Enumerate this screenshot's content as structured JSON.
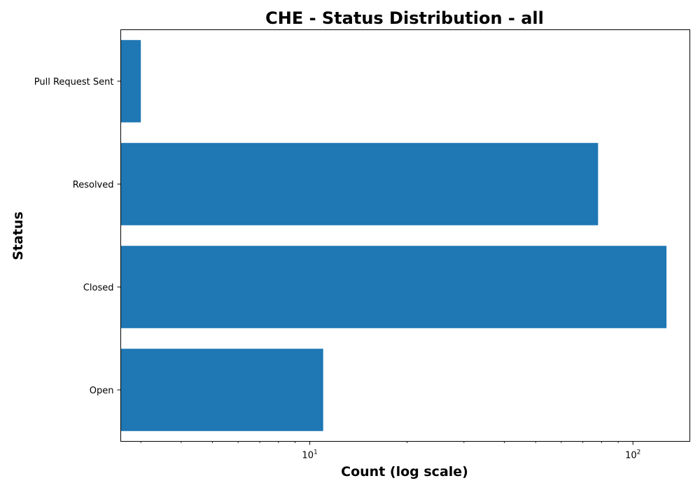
{
  "chart_data": {
    "type": "bar",
    "orientation": "horizontal",
    "title": "CHE - Status Distribution - all",
    "xlabel": "Count (log scale)",
    "ylabel": "Status",
    "x_scale": "log",
    "xlim": [
      2.6,
      150
    ],
    "categories": [
      "Open",
      "Closed",
      "Resolved",
      "Pull Request Sent"
    ],
    "values": [
      11,
      127,
      78,
      3
    ],
    "x_ticks": [
      {
        "value": 10,
        "base": "10",
        "exponent": "1"
      },
      {
        "value": 100,
        "base": "10",
        "exponent": "2"
      }
    ],
    "bar_color": "#1f77b4",
    "grid": false,
    "legend": "none"
  }
}
